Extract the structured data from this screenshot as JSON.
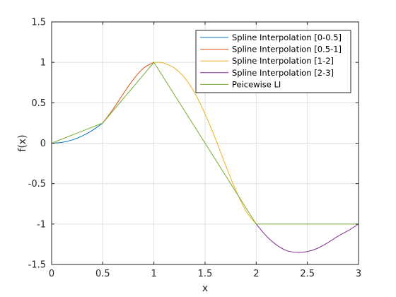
{
  "chart_data": {
    "type": "line",
    "xlabel": "x",
    "ylabel": "f(x)",
    "xlim": [
      0,
      3
    ],
    "ylim": [
      -1.5,
      1.5
    ],
    "xticks": [
      0,
      0.5,
      1,
      1.5,
      2,
      2.5,
      3
    ],
    "yticks": [
      -1.5,
      -1,
      -0.5,
      0,
      0.5,
      1,
      1.5
    ],
    "xtick_labels": [
      "0",
      "0.5",
      "1",
      "1.5",
      "2",
      "2.5",
      "3"
    ],
    "ytick_labels": [
      "-1.5",
      "-1",
      "-0.5",
      "0",
      "0.5",
      "1",
      "1.5"
    ],
    "grid": true,
    "legend_position": "top-right",
    "series": [
      {
        "name": "Spline Interpolation [0-0.5]",
        "color": "#0072bd",
        "x": [
          0,
          0.1,
          0.2,
          0.3,
          0.4,
          0.5
        ],
        "y": [
          0,
          0.01,
          0.04,
          0.09,
          0.16,
          0.25
        ]
      },
      {
        "name": "Spline Interpolation [0.5-1]",
        "color": "#d95319",
        "x": [
          0.5,
          0.6,
          0.7,
          0.8,
          0.9,
          1.0
        ],
        "y": [
          0.25,
          0.42,
          0.61,
          0.79,
          0.93,
          1.0
        ]
      },
      {
        "name": "Spline Interpolation [1-2]",
        "color": "#edb120",
        "x": [
          1.0,
          1.05,
          1.1,
          1.2,
          1.3,
          1.4,
          1.5,
          1.6,
          1.7,
          1.8,
          1.9,
          2.0
        ],
        "y": [
          1.0,
          1.0,
          0.99,
          0.93,
          0.81,
          0.62,
          0.36,
          0.06,
          -0.27,
          -0.58,
          -0.84,
          -1.0
        ]
      },
      {
        "name": "Spline Interpolation [2-3]",
        "color": "#7e2f8e",
        "x": [
          2.0,
          2.1,
          2.2,
          2.3,
          2.4,
          2.5,
          2.6,
          2.7,
          2.8,
          2.9,
          3.0
        ],
        "y": [
          -1.0,
          -1.15,
          -1.26,
          -1.33,
          -1.35,
          -1.34,
          -1.3,
          -1.23,
          -1.15,
          -1.08,
          -1.0
        ]
      },
      {
        "name": "Peicewise LI",
        "color": "#77ac30",
        "x": [
          0,
          0.5,
          1,
          2,
          3
        ],
        "y": [
          0,
          0.25,
          1,
          -1,
          -1
        ]
      }
    ]
  }
}
